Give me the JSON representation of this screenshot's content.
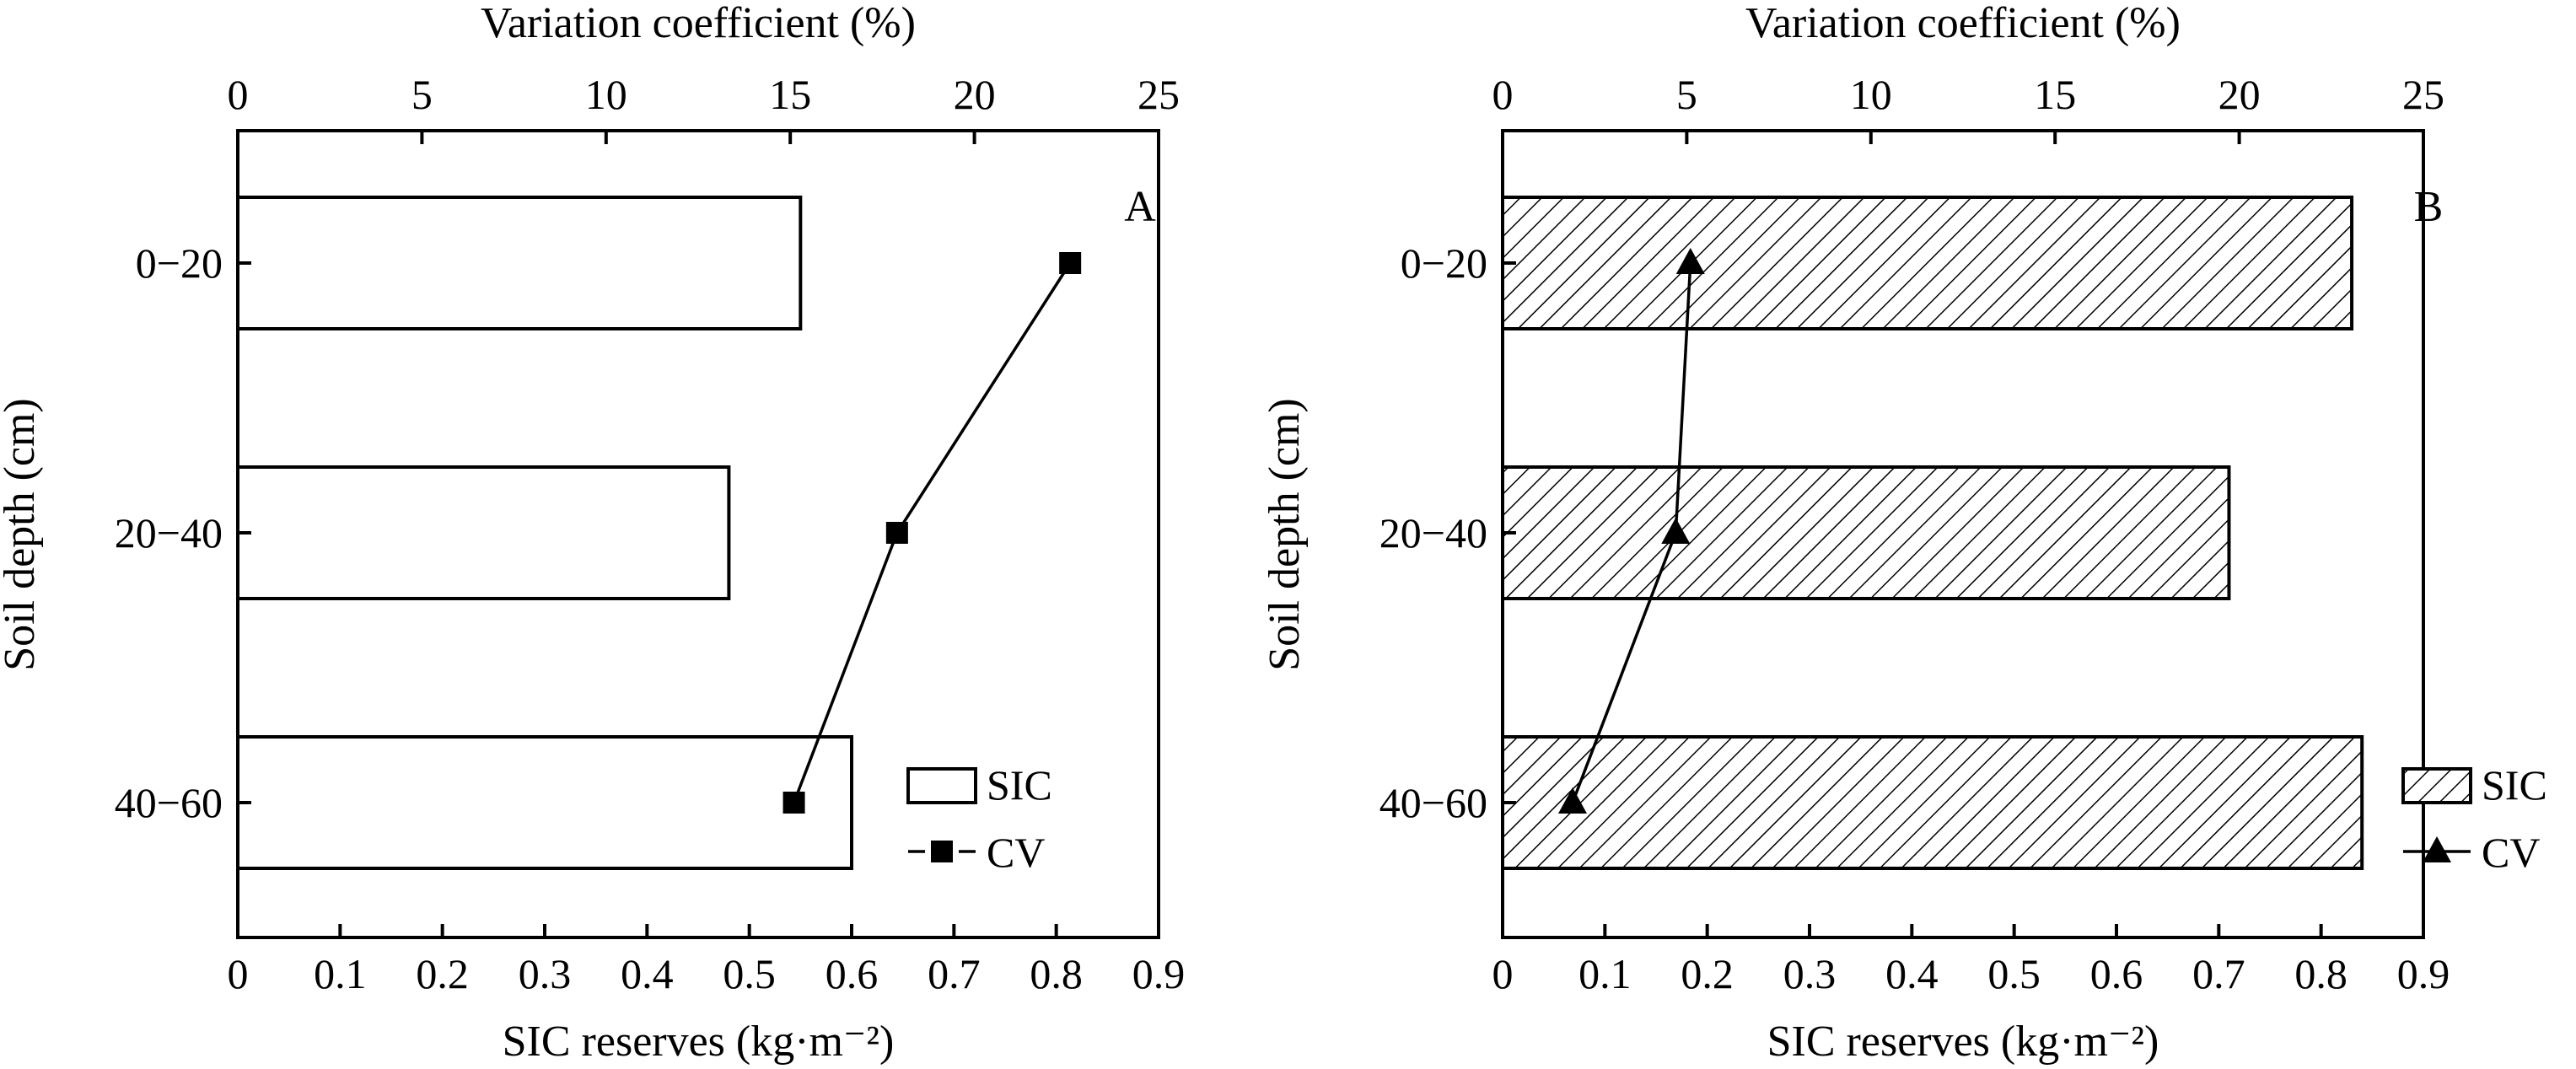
{
  "chart_data": [
    {
      "type": "bar",
      "orientation": "horizontal",
      "panel_label": "A",
      "categories": [
        "0−20",
        "20−40",
        "40−60"
      ],
      "ylabel": "Soil depth (cm)",
      "bottom_axis": {
        "label": "SIC reserves (kg·m⁻²)",
        "lim": [
          0,
          0.9
        ],
        "ticks": [
          "0",
          "0.1",
          "0.2",
          "0.3",
          "0.4",
          "0.5",
          "0.6",
          "0.7",
          "0.8",
          "0.9"
        ]
      },
      "top_axis": {
        "label": "Variation coefficient (%)",
        "lim": [
          0,
          25
        ],
        "ticks": [
          "0",
          "5",
          "10",
          "15",
          "20",
          "25"
        ]
      },
      "series": [
        {
          "name": "SIC",
          "kind": "bar",
          "fill": "open",
          "axis": "bottom",
          "values": [
            0.55,
            0.48,
            0.6
          ]
        },
        {
          "name": "CV",
          "kind": "line",
          "marker": "square",
          "axis": "top",
          "values": [
            22.6,
            17.9,
            15.1
          ]
        }
      ],
      "legend": {
        "position": "bottom-right",
        "entries": [
          "SIC",
          "CV"
        ]
      }
    },
    {
      "type": "bar",
      "orientation": "horizontal",
      "panel_label": "B",
      "categories": [
        "0−20",
        "20−40",
        "40−60"
      ],
      "ylabel": "Soil depth (cm)",
      "bottom_axis": {
        "label": "SIC reserves (kg·m⁻²)",
        "lim": [
          0,
          0.9
        ],
        "ticks": [
          "0",
          "0.1",
          "0.2",
          "0.3",
          "0.4",
          "0.5",
          "0.6",
          "0.7",
          "0.8",
          "0.9"
        ]
      },
      "top_axis": {
        "label": "Variation coefficient (%)",
        "lim": [
          0,
          25
        ],
        "ticks": [
          "0",
          "5",
          "10",
          "15",
          "20",
          "25"
        ]
      },
      "series": [
        {
          "name": "SIC",
          "kind": "bar",
          "fill": "hatched",
          "axis": "bottom",
          "values": [
            0.83,
            0.71,
            0.84
          ]
        },
        {
          "name": "CV",
          "kind": "line",
          "marker": "triangle",
          "axis": "top",
          "values": [
            5.1,
            4.7,
            1.9
          ]
        }
      ],
      "legend": {
        "position": "bottom-right",
        "entries": [
          "SIC",
          "CV"
        ]
      }
    }
  ]
}
